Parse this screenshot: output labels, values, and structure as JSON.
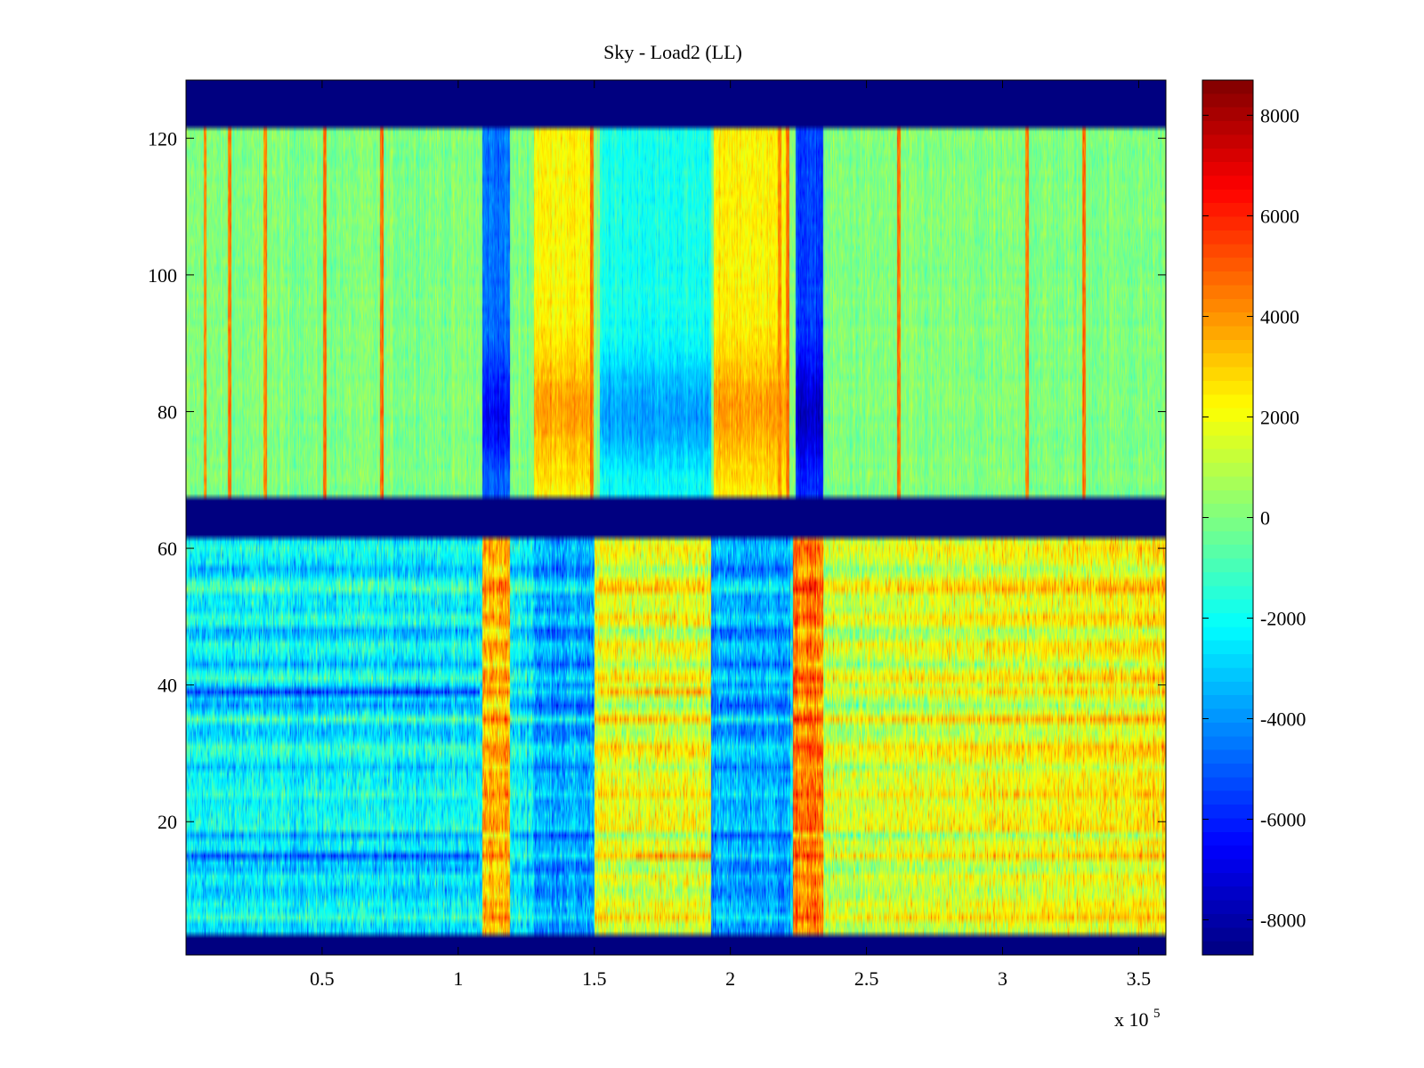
{
  "chart_data": {
    "type": "heatmap",
    "title": "Sky - Load2 (LL)",
    "xlabel": "",
    "ylabel": "",
    "x_exponent_label": "x 10",
    "x_exponent_power": "5",
    "xlim": [
      0,
      3.6
    ],
    "ylim": [
      0.5,
      128.5
    ],
    "xticks": [
      {
        "value": 0.5,
        "label": "0.5"
      },
      {
        "value": 1,
        "label": "1"
      },
      {
        "value": 1.5,
        "label": "1.5"
      },
      {
        "value": 2,
        "label": "2"
      },
      {
        "value": 2.5,
        "label": "2.5"
      },
      {
        "value": 3,
        "label": "3"
      },
      {
        "value": 3.5,
        "label": "3.5"
      }
    ],
    "yticks": [
      {
        "value": 20,
        "label": "20"
      },
      {
        "value": 40,
        "label": "40"
      },
      {
        "value": 60,
        "label": "60"
      },
      {
        "value": 80,
        "label": "80"
      },
      {
        "value": 100,
        "label": "100"
      },
      {
        "value": 120,
        "label": "120"
      }
    ],
    "colorbar": {
      "colormap": "jet",
      "clim": [
        -8700,
        8700
      ],
      "ticks": [
        {
          "value": 8000,
          "label": "8000"
        },
        {
          "value": 6000,
          "label": "6000"
        },
        {
          "value": 4000,
          "label": "4000"
        },
        {
          "value": 2000,
          "label": "2000"
        },
        {
          "value": 0,
          "label": "0"
        },
        {
          "value": -2000,
          "label": "-2000"
        },
        {
          "value": -4000,
          "label": "-4000"
        },
        {
          "value": -6000,
          "label": "-6000"
        },
        {
          "value": -8000,
          "label": "-8000"
        }
      ]
    },
    "masked_rows": [
      {
        "from": 0.5,
        "to": 3.5
      },
      {
        "from": 61.5,
        "to": 67.5
      },
      {
        "from": 121.5,
        "to": 128.5
      }
    ],
    "regions": {
      "upper": {
        "rows": [
          67.5,
          121.5
        ],
        "base_value": 0,
        "vertical_bands": [
          {
            "x0": 1.09,
            "x1": 1.19,
            "value": -4500,
            "note": "blue band"
          },
          {
            "x0": 1.28,
            "x1": 1.49,
            "value": 2300,
            "note": "yellow band"
          },
          {
            "x0": 1.52,
            "x1": 1.93,
            "value": -1800,
            "note": "cyan band"
          },
          {
            "x0": 1.94,
            "x1": 2.21,
            "value": 2300,
            "note": "yellow band"
          },
          {
            "x0": 2.24,
            "x1": 2.34,
            "value": -5500,
            "note": "blue band"
          }
        ],
        "spikes_x": [
          0.07,
          0.16,
          0.29,
          0.51,
          0.72,
          1.49,
          2.18,
          2.21,
          2.62,
          3.09,
          3.3
        ]
      },
      "lower": {
        "rows": [
          3.5,
          61.5
        ],
        "base_value": -2200,
        "vertical_bands": [
          {
            "x0": 1.09,
            "x1": 1.19,
            "value": 3500,
            "note": "orange band"
          },
          {
            "x0": 1.28,
            "x1": 1.5,
            "value": -3500,
            "note": "blue band"
          },
          {
            "x0": 1.5,
            "x1": 1.93,
            "value": 1800,
            "note": "yellow/orange band"
          },
          {
            "x0": 1.93,
            "x1": 2.22,
            "value": -3500,
            "note": "blue band"
          },
          {
            "x0": 2.23,
            "x1": 2.34,
            "value": 4500,
            "note": "red band"
          },
          {
            "x0": 2.34,
            "x1": 3.6,
            "value": 1200,
            "note": "yellow band, warming to right"
          }
        ],
        "horizontal_streaks": [
          {
            "row": 39,
            "x0": 0,
            "x1": 1.08,
            "value": -5500
          },
          {
            "row": 39,
            "x0": 1.55,
            "x1": 1.93,
            "value": 3500
          },
          {
            "row": 15,
            "x0": 0,
            "x1": 1.08,
            "value": -5000
          },
          {
            "row": 15,
            "x0": 1.65,
            "x1": 1.93,
            "value": 4000
          }
        ]
      }
    }
  }
}
